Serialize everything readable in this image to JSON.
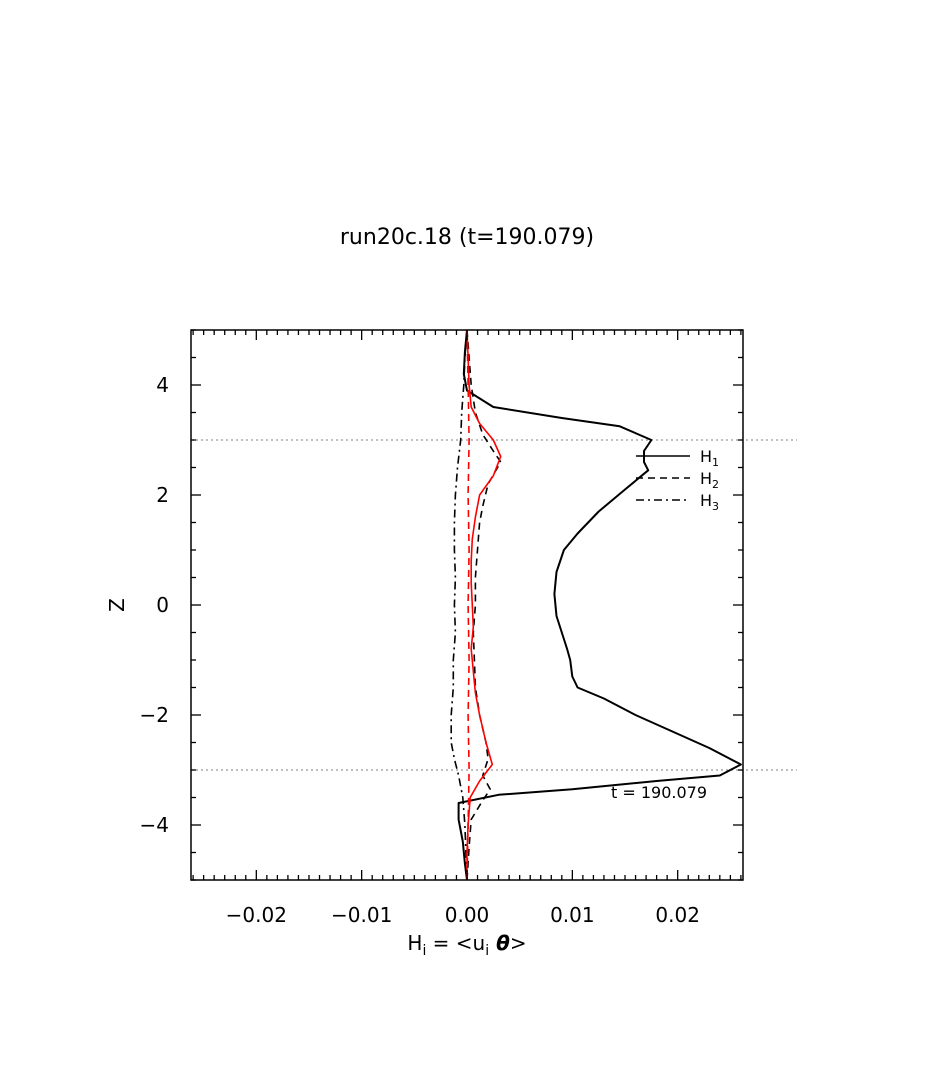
{
  "chart_data": {
    "type": "line",
    "title": "run20c.18 (t=190.079)",
    "xlabel": {
      "main": "H",
      "sub": "i",
      "eq": " = <u",
      "sub2": "i",
      "theta": " θ",
      "close": ">"
    },
    "ylabel": "Z",
    "xlim": [
      -0.0262,
      0.0262
    ],
    "ylim": [
      -5,
      5
    ],
    "xticks": [
      -0.02,
      -0.01,
      0.0,
      0.01,
      0.02
    ],
    "xtick_labels": [
      "−0.02",
      "−0.01",
      "0.00",
      "0.01",
      "0.02"
    ],
    "yticks": [
      -4,
      -2,
      0,
      2,
      4
    ],
    "ytick_labels": [
      "−4",
      "−2",
      "0",
      "2",
      "4"
    ],
    "hlines": [
      3,
      -3
    ],
    "annotation": "t = 190.079",
    "legend_position": "right",
    "legend": [
      {
        "main": "H",
        "sub": "1",
        "style": "solid"
      },
      {
        "main": "H",
        "sub": "2",
        "style": "dashed"
      },
      {
        "main": "H",
        "sub": "3",
        "style": "dashdot"
      }
    ],
    "series": [
      {
        "name": "H1",
        "color": "#000000",
        "style": "solid",
        "points": [
          [
            0.0,
            5.0
          ],
          [
            -0.0002,
            4.6
          ],
          [
            -0.0003,
            4.2
          ],
          [
            0.0,
            3.9
          ],
          [
            0.0025,
            3.6
          ],
          [
            0.009,
            3.4
          ],
          [
            0.0145,
            3.25
          ],
          [
            0.0175,
            3.0
          ],
          [
            0.0168,
            2.8
          ],
          [
            0.0168,
            2.6
          ],
          [
            0.0172,
            2.45
          ],
          [
            0.015,
            2.1
          ],
          [
            0.0125,
            1.7
          ],
          [
            0.0105,
            1.3
          ],
          [
            0.0092,
            1.0
          ],
          [
            0.0085,
            0.6
          ],
          [
            0.0083,
            0.2
          ],
          [
            0.0085,
            -0.2
          ],
          [
            0.009,
            -0.5
          ],
          [
            0.0095,
            -0.8
          ],
          [
            0.0098,
            -1.0
          ],
          [
            0.01,
            -1.3
          ],
          [
            0.0105,
            -1.5
          ],
          [
            0.013,
            -1.7
          ],
          [
            0.016,
            -2.0
          ],
          [
            0.0195,
            -2.3
          ],
          [
            0.023,
            -2.6
          ],
          [
            0.026,
            -2.9
          ],
          [
            0.024,
            -3.1
          ],
          [
            0.018,
            -3.2
          ],
          [
            0.01,
            -3.35
          ],
          [
            0.003,
            -3.45
          ],
          [
            -0.0008,
            -3.6
          ],
          [
            -0.0008,
            -3.9
          ],
          [
            -0.0004,
            -4.3
          ],
          [
            -0.0002,
            -4.7
          ],
          [
            0.0,
            -5.0
          ]
        ]
      },
      {
        "name": "H2",
        "color": "#000000",
        "style": "dashed",
        "points": [
          [
            0.0,
            5.0
          ],
          [
            0.0002,
            4.5
          ],
          [
            0.0004,
            4.0
          ],
          [
            0.0008,
            3.5
          ],
          [
            0.0015,
            3.1
          ],
          [
            0.0025,
            2.8
          ],
          [
            0.0032,
            2.6
          ],
          [
            0.002,
            2.2
          ],
          [
            0.0015,
            1.8
          ],
          [
            0.0012,
            1.5
          ],
          [
            0.001,
            1.0
          ],
          [
            0.0008,
            0.5
          ],
          [
            0.0008,
            0.0
          ],
          [
            0.0006,
            -0.5
          ],
          [
            0.0007,
            -1.0
          ],
          [
            0.0008,
            -1.5
          ],
          [
            0.0012,
            -2.0
          ],
          [
            0.0018,
            -2.5
          ],
          [
            0.002,
            -2.8
          ],
          [
            0.0015,
            -3.1
          ],
          [
            0.0022,
            -3.35
          ],
          [
            0.0015,
            -3.55
          ],
          [
            0.0004,
            -3.9
          ],
          [
            0.0002,
            -4.4
          ],
          [
            0.0,
            -5.0
          ]
        ]
      },
      {
        "name": "H3",
        "color": "#000000",
        "style": "dashdot",
        "points": [
          [
            0.0,
            5.0
          ],
          [
            -0.0002,
            4.5
          ],
          [
            -0.0003,
            4.0
          ],
          [
            -0.0005,
            3.5
          ],
          [
            -0.0006,
            3.0
          ],
          [
            -0.0009,
            2.5
          ],
          [
            -0.0011,
            2.0
          ],
          [
            -0.0012,
            1.5
          ],
          [
            -0.0012,
            1.0
          ],
          [
            -0.0011,
            0.5
          ],
          [
            -0.0012,
            0.0
          ],
          [
            -0.0011,
            -0.5
          ],
          [
            -0.0013,
            -1.0
          ],
          [
            -0.0013,
            -1.5
          ],
          [
            -0.0015,
            -2.0
          ],
          [
            -0.0015,
            -2.5
          ],
          [
            -0.0012,
            -2.8
          ],
          [
            -0.0008,
            -3.1
          ],
          [
            -0.0004,
            -3.5
          ],
          [
            -0.0002,
            -4.0
          ],
          [
            -0.0001,
            -4.5
          ],
          [
            0.0,
            -5.0
          ]
        ]
      },
      {
        "name": "",
        "color": "#ff0000",
        "style": "solid",
        "points": [
          [
            0.0,
            5.0
          ],
          [
            0.0001,
            4.5
          ],
          [
            0.0002,
            4.0
          ],
          [
            0.0004,
            3.6
          ],
          [
            0.0012,
            3.3
          ],
          [
            0.0025,
            3.0
          ],
          [
            0.0032,
            2.7
          ],
          [
            0.0025,
            2.35
          ],
          [
            0.0012,
            2.0
          ],
          [
            0.0008,
            1.6
          ],
          [
            0.0005,
            1.2
          ],
          [
            0.0004,
            0.8
          ],
          [
            0.0004,
            0.4
          ],
          [
            0.0005,
            0.0
          ],
          [
            0.0006,
            -0.4
          ],
          [
            0.0004,
            -0.8
          ],
          [
            0.0006,
            -1.2
          ],
          [
            0.0008,
            -1.6
          ],
          [
            0.0012,
            -2.0
          ],
          [
            0.0018,
            -2.5
          ],
          [
            0.0024,
            -2.9
          ],
          [
            0.0012,
            -3.2
          ],
          [
            0.0003,
            -3.5
          ],
          [
            0.0001,
            -4.0
          ],
          [
            0.0,
            -4.5
          ],
          [
            0.0,
            -5.0
          ]
        ]
      },
      {
        "name": "",
        "color": "#ff0000",
        "style": "dashed",
        "points": [
          [
            0.0,
            5.0
          ],
          [
            0.0001,
            4.0
          ],
          [
            0.0002,
            3.0
          ],
          [
            0.0001,
            2.0
          ],
          [
            0.0002,
            1.0
          ],
          [
            0.0001,
            0.0
          ],
          [
            0.0002,
            -1.0
          ],
          [
            0.0001,
            -2.0
          ],
          [
            0.0002,
            -3.0
          ],
          [
            0.0001,
            -4.0
          ],
          [
            0.0,
            -5.0
          ]
        ]
      }
    ]
  }
}
